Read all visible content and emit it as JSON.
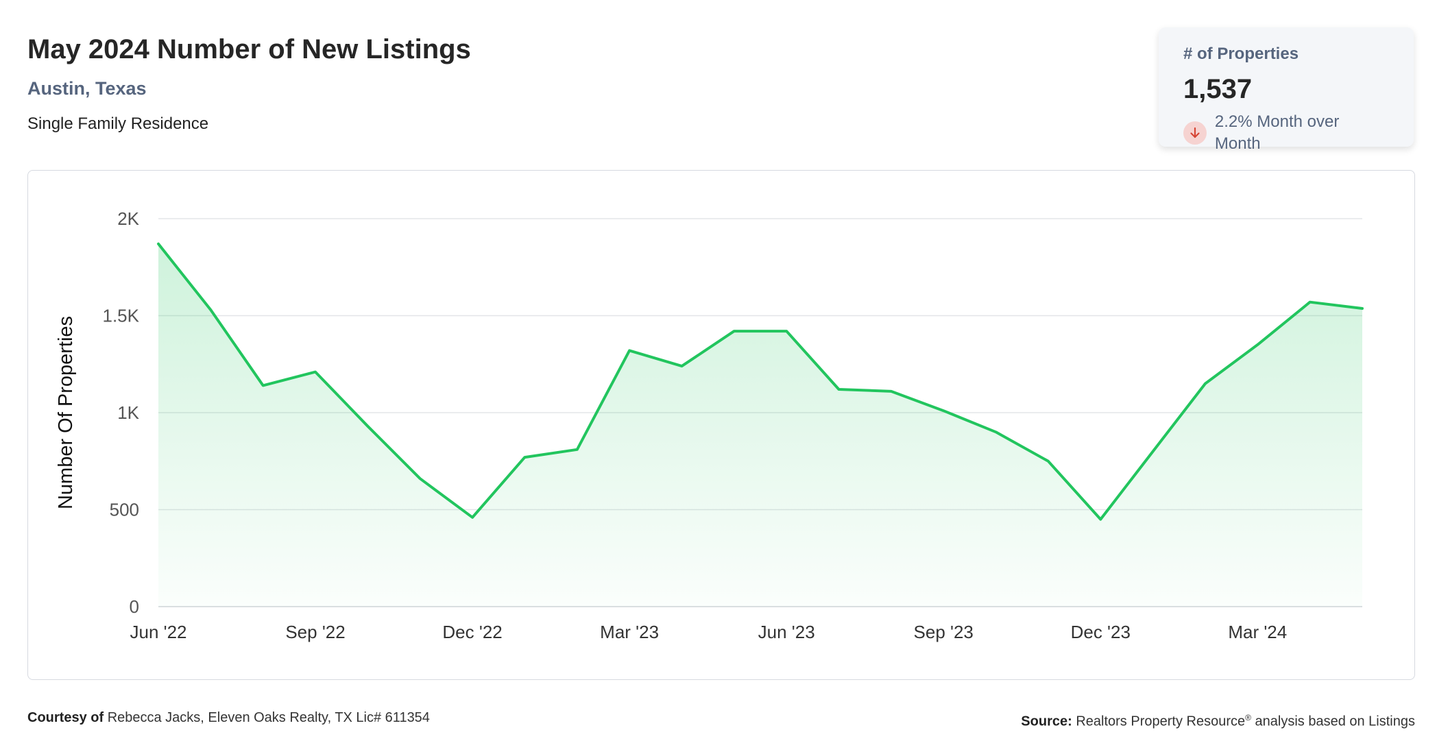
{
  "header": {
    "title": "May 2024 Number of New Listings",
    "location": "Austin, Texas",
    "property_type": "Single Family Residence"
  },
  "stat": {
    "label": "# of Properties",
    "value": "1,537",
    "change_text": "2.2% Month over Month",
    "direction": "down"
  },
  "colors": {
    "line": "#22c55e",
    "fill": "#22c55e",
    "grid": "#e3e5e8",
    "down_badge": "#f6d3d1",
    "down_arrow": "#d64535"
  },
  "chart_data": {
    "type": "area",
    "title": "",
    "xlabel": "",
    "ylabel": "Number Of Properties",
    "ylim": [
      0,
      2000
    ],
    "yticks": [
      0,
      500,
      1000,
      1500,
      2000
    ],
    "ytick_labels": [
      "0",
      "500",
      "1K",
      "1.5K",
      "2K"
    ],
    "grid": true,
    "xtick_labels": [
      "Jun '22",
      "Sep '22",
      "Dec '22",
      "Mar '23",
      "Jun '23",
      "Sep '23",
      "Dec '23",
      "Mar '24"
    ],
    "xtick_indices": [
      0,
      3,
      6,
      9,
      12,
      15,
      18,
      21
    ],
    "categories": [
      "Jun '22",
      "Jul '22",
      "Aug '22",
      "Sep '22",
      "Oct '22",
      "Nov '22",
      "Dec '22",
      "Jan '23",
      "Feb '23",
      "Mar '23",
      "Apr '23",
      "May '23",
      "Jun '23",
      "Jul '23",
      "Aug '23",
      "Sep '23",
      "Oct '23",
      "Nov '23",
      "Dec '23",
      "Jan '24",
      "Feb '24",
      "Mar '24",
      "Apr '24",
      "May '24"
    ],
    "series": [
      {
        "values": [
          1870,
          1530,
          1140,
          1210,
          930,
          660,
          460,
          770,
          810,
          1320,
          1240,
          1420,
          1420,
          1120,
          1110,
          1010,
          900,
          750,
          450,
          800,
          1150,
          1350,
          1570,
          1537
        ]
      }
    ]
  },
  "footer": {
    "courtesy_label": "Courtesy of",
    "courtesy_text": "Rebecca Jacks, Eleven Oaks Realty, TX Lic# 611354",
    "source_label": "Source:",
    "source_text_a": "Realtors Property Resource",
    "source_sup": "®",
    "source_text_b": " analysis based on Listings"
  }
}
